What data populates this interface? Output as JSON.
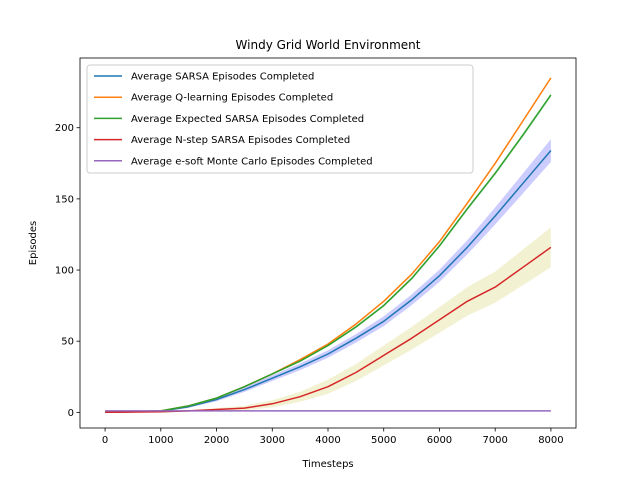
{
  "chart_data": {
    "type": "line",
    "title": "Windy Grid World Environment",
    "xlabel": "Timesteps",
    "ylabel": "Episodes",
    "xlim": [
      -450,
      8450
    ],
    "ylim": [
      -11,
      249
    ],
    "xticks": [
      0,
      1000,
      2000,
      3000,
      4000,
      5000,
      6000,
      7000,
      8000
    ],
    "yticks": [
      0,
      50,
      100,
      150,
      200
    ],
    "legend_position": "top-left",
    "grid": false,
    "series": [
      {
        "name": "Average SARSA Episodes Completed",
        "color": "#1f77b4",
        "band_color": "#0000ff",
        "x": [
          0,
          1000,
          1500,
          2000,
          2500,
          3000,
          3500,
          4000,
          4500,
          5000,
          5500,
          6000,
          6500,
          7000,
          7500,
          8000
        ],
        "y": [
          0,
          0.8,
          4,
          9,
          16,
          24,
          32,
          41,
          52,
          64,
          79,
          96,
          116,
          138,
          161,
          184
        ],
        "band": [
          0,
          0.3,
          0.8,
          1.2,
          1.6,
          2,
          2.3,
          2.6,
          3,
          3.4,
          3.8,
          4.3,
          5,
          6,
          7,
          8
        ]
      },
      {
        "name": "Average Q-learning Episodes Completed",
        "color": "#ff7f0e",
        "band_color": "#ff7f0e",
        "x": [
          0,
          1000,
          1500,
          2000,
          2500,
          3000,
          3500,
          4000,
          4500,
          5000,
          5500,
          6000,
          6500,
          7000,
          7500,
          8000
        ],
        "y": [
          0,
          1,
          4.5,
          10,
          18,
          27,
          37,
          48,
          62,
          78,
          97,
          120,
          147,
          175,
          205,
          235
        ],
        "band": [
          0,
          0.2,
          0.3,
          0.4,
          0.5,
          0.5,
          0.6,
          0.6,
          0.7,
          0.7,
          0.8,
          0.8,
          0.9,
          0.9,
          1,
          1
        ]
      },
      {
        "name": "Average Expected SARSA Episodes Completed",
        "color": "#2ca02c",
        "band_color": "#2ca02c",
        "x": [
          0,
          1000,
          1500,
          2000,
          2500,
          3000,
          3500,
          4000,
          4500,
          5000,
          5500,
          6000,
          6500,
          7000,
          7500,
          8000
        ],
        "y": [
          0,
          1,
          4.5,
          10,
          18,
          27,
          36,
          47,
          60,
          75,
          94,
          117,
          143,
          168,
          195,
          223
        ],
        "band": [
          0,
          0.2,
          0.4,
          0.5,
          0.6,
          0.7,
          0.8,
          0.9,
          1,
          1,
          1.1,
          1.2,
          1.3,
          1.4,
          1.5,
          1.6
        ]
      },
      {
        "name": "Average N-step SARSA Episodes Completed",
        "color": "#d62728",
        "band_color": "#bcbd22",
        "x": [
          0,
          1000,
          1500,
          2000,
          2500,
          3000,
          3500,
          4000,
          4500,
          5000,
          5500,
          6000,
          6500,
          7000,
          7500,
          8000
        ],
        "y": [
          0,
          0.4,
          1,
          2,
          3,
          6,
          11,
          18,
          28,
          40,
          52,
          65,
          78,
          88,
          102,
          116
        ],
        "band": [
          0,
          0.2,
          0.5,
          1,
          1.5,
          2.5,
          3.5,
          5,
          6,
          7,
          8,
          9,
          10,
          11,
          12.5,
          14
        ]
      },
      {
        "name": "Average e-soft Monte Carlo Episodes Completed",
        "color": "#9467bd",
        "band_color": "#9467bd",
        "x": [
          0,
          8000
        ],
        "y": [
          1,
          1
        ],
        "band": [
          0,
          0
        ]
      }
    ]
  }
}
